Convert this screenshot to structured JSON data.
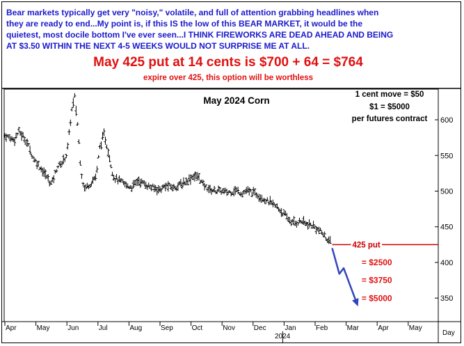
{
  "header": {
    "commentary": [
      "Bear markets typically get very \"noisy,\" volatile, and full of attention grabbing headlines when",
      "they are ready to end...My point is, if this IS the low of this BEAR MARKET, it would be the",
      "quietest, most docile bottom I've ever seen...I THINK FIREWORKS ARE DEAD AHEAD AND BEING",
      "AT $3.50 WITHIN THE NEXT 4-5 WEEKS WOULD NOT SURPRISE ME AT ALL."
    ],
    "headline": "May 425 put at 14 cents is $700 + 64 = $764",
    "subline": "expire over 425, this option will be worthless"
  },
  "colors": {
    "commentary": "#1a1acc",
    "headline": "#e01010",
    "arrow": "#3344bb",
    "put_line": "#cc0000",
    "price_bars": "#000000"
  },
  "chart_data": {
    "type": "bar",
    "style": "ohlc",
    "title": "May 2024 Corn",
    "notes": [
      "1 cent move = $50",
      "$1 = $5000",
      "per futures contract"
    ],
    "x_axis": {
      "months": [
        "Apr",
        "May",
        "Jun",
        "Jul",
        "Aug",
        "Sep",
        "Oct",
        "Nov",
        "Dec",
        "Jan",
        "Feb",
        "Mar",
        "Apr",
        "May"
      ],
      "year_label": "2024",
      "end_label": "Day"
    },
    "y_axis": {
      "ticks": [
        350,
        400,
        450,
        500,
        550,
        600
      ],
      "ylim": [
        317,
        643
      ],
      "side": "right",
      "grid": false
    },
    "price_path": [
      {
        "m": 0.0,
        "p": 578
      },
      {
        "m": 0.3,
        "p": 572
      },
      {
        "m": 0.45,
        "p": 584
      },
      {
        "m": 0.7,
        "p": 570
      },
      {
        "m": 0.9,
        "p": 548
      },
      {
        "m": 1.1,
        "p": 536
      },
      {
        "m": 1.35,
        "p": 520
      },
      {
        "m": 1.5,
        "p": 510
      },
      {
        "m": 1.7,
        "p": 535
      },
      {
        "m": 1.85,
        "p": 540
      },
      {
        "m": 2.0,
        "p": 552
      },
      {
        "m": 2.15,
        "p": 612
      },
      {
        "m": 2.25,
        "p": 632
      },
      {
        "m": 2.35,
        "p": 590
      },
      {
        "m": 2.45,
        "p": 530
      },
      {
        "m": 2.55,
        "p": 504
      },
      {
        "m": 2.75,
        "p": 510
      },
      {
        "m": 2.95,
        "p": 522
      },
      {
        "m": 3.05,
        "p": 560
      },
      {
        "m": 3.2,
        "p": 580
      },
      {
        "m": 3.35,
        "p": 552
      },
      {
        "m": 3.5,
        "p": 520
      },
      {
        "m": 3.7,
        "p": 514
      },
      {
        "m": 3.9,
        "p": 508
      },
      {
        "m": 4.1,
        "p": 506
      },
      {
        "m": 4.3,
        "p": 515
      },
      {
        "m": 4.5,
        "p": 510
      },
      {
        "m": 4.75,
        "p": 505
      },
      {
        "m": 5.0,
        "p": 502
      },
      {
        "m": 5.2,
        "p": 508
      },
      {
        "m": 5.45,
        "p": 505
      },
      {
        "m": 5.7,
        "p": 510
      },
      {
        "m": 5.9,
        "p": 515
      },
      {
        "m": 6.05,
        "p": 521
      },
      {
        "m": 6.25,
        "p": 520
      },
      {
        "m": 6.4,
        "p": 508
      },
      {
        "m": 6.6,
        "p": 502
      },
      {
        "m": 6.9,
        "p": 500
      },
      {
        "m": 7.2,
        "p": 498
      },
      {
        "m": 7.45,
        "p": 501
      },
      {
        "m": 7.65,
        "p": 497
      },
      {
        "m": 7.8,
        "p": 500
      },
      {
        "m": 8.0,
        "p": 498
      },
      {
        "m": 8.2,
        "p": 494
      },
      {
        "m": 8.45,
        "p": 486
      },
      {
        "m": 8.7,
        "p": 480
      },
      {
        "m": 8.9,
        "p": 472
      },
      {
        "m": 9.05,
        "p": 465
      },
      {
        "m": 9.2,
        "p": 458
      },
      {
        "m": 9.35,
        "p": 455
      },
      {
        "m": 9.55,
        "p": 458
      },
      {
        "m": 9.75,
        "p": 453
      },
      {
        "m": 9.9,
        "p": 452
      },
      {
        "m": 10.1,
        "p": 446
      },
      {
        "m": 10.25,
        "p": 440
      },
      {
        "m": 10.4,
        "p": 432
      },
      {
        "m": 10.5,
        "p": 428
      }
    ],
    "bar_spacing_months": 0.045,
    "bar_range": 7,
    "put_strike": {
      "value": 425,
      "label": "425 put"
    },
    "projection": [
      {
        "m": 10.55,
        "p": 420
      },
      {
        "m": 10.78,
        "p": 384
      },
      {
        "m": 10.92,
        "p": 392
      },
      {
        "m": 11.35,
        "p": 342
      }
    ],
    "annotations": [
      {
        "text": "= $2500",
        "m": 11.5,
        "p": 396
      },
      {
        "text": "= $3750",
        "m": 11.5,
        "p": 371
      },
      {
        "text": "= $5000",
        "m": 11.5,
        "p": 346
      }
    ]
  }
}
